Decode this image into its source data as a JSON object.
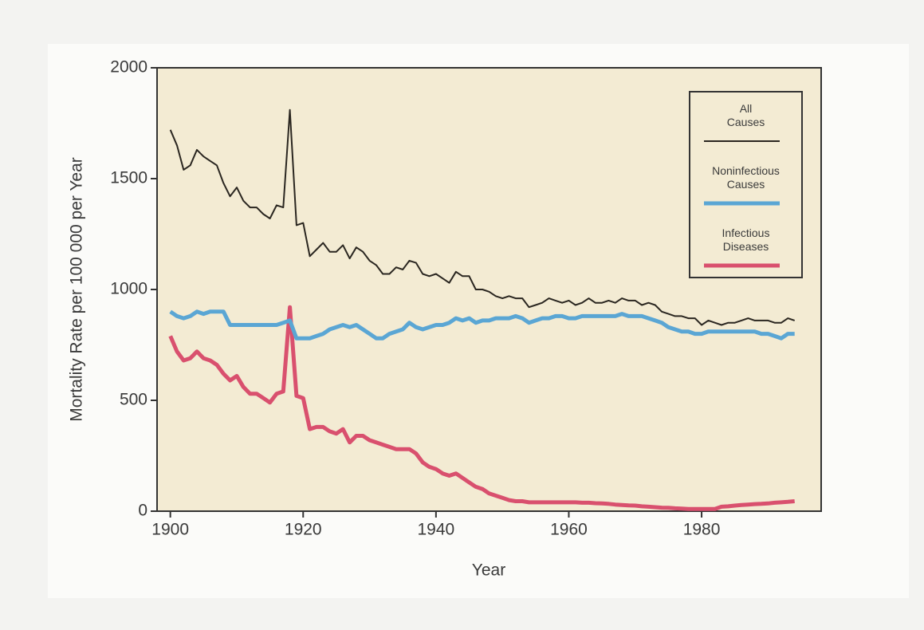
{
  "chart_data": {
    "type": "line",
    "xlabel": "Year",
    "ylabel": "Mortality Rate per 100 000 per Year",
    "x": [
      1900,
      1901,
      1902,
      1903,
      1904,
      1905,
      1906,
      1907,
      1908,
      1909,
      1910,
      1911,
      1912,
      1913,
      1914,
      1915,
      1916,
      1917,
      1918,
      1919,
      1920,
      1921,
      1922,
      1923,
      1924,
      1925,
      1926,
      1927,
      1928,
      1929,
      1930,
      1931,
      1932,
      1933,
      1934,
      1935,
      1936,
      1937,
      1938,
      1939,
      1940,
      1941,
      1942,
      1943,
      1944,
      1945,
      1946,
      1947,
      1948,
      1949,
      1950,
      1951,
      1952,
      1953,
      1954,
      1955,
      1956,
      1957,
      1958,
      1959,
      1960,
      1961,
      1962,
      1963,
      1964,
      1965,
      1966,
      1967,
      1968,
      1969,
      1970,
      1971,
      1972,
      1973,
      1974,
      1975,
      1976,
      1977,
      1978,
      1979,
      1980,
      1981,
      1982,
      1983,
      1984,
      1985,
      1986,
      1987,
      1988,
      1989,
      1990,
      1991,
      1992,
      1993,
      1994
    ],
    "series": [
      {
        "name": "All Causes",
        "color": "#2a2620",
        "values": [
          1720,
          1650,
          1540,
          1560,
          1630,
          1600,
          1580,
          1560,
          1480,
          1420,
          1460,
          1400,
          1370,
          1370,
          1340,
          1320,
          1380,
          1370,
          1810,
          1290,
          1300,
          1150,
          1180,
          1210,
          1170,
          1170,
          1200,
          1140,
          1190,
          1170,
          1130,
          1110,
          1070,
          1070,
          1100,
          1090,
          1130,
          1120,
          1070,
          1060,
          1070,
          1050,
          1030,
          1080,
          1060,
          1060,
          1000,
          1000,
          990,
          970,
          960,
          970,
          960,
          960,
          920,
          930,
          940,
          960,
          950,
          940,
          950,
          930,
          940,
          960,
          940,
          940,
          950,
          940,
          960,
          950,
          950,
          930,
          940,
          930,
          900,
          890,
          880,
          880,
          870,
          870,
          840,
          860,
          850,
          840,
          850,
          850,
          860,
          870,
          860,
          860,
          860,
          850,
          850,
          870,
          860
        ]
      },
      {
        "name": "Noninfectious Causes",
        "color": "#5aa6d4",
        "values": [
          900,
          880,
          870,
          880,
          900,
          890,
          900,
          900,
          900,
          840,
          840,
          840,
          840,
          840,
          840,
          840,
          840,
          850,
          860,
          780,
          780,
          780,
          790,
          800,
          820,
          830,
          840,
          830,
          840,
          820,
          800,
          780,
          780,
          800,
          810,
          820,
          850,
          830,
          820,
          830,
          840,
          840,
          850,
          870,
          860,
          870,
          850,
          860,
          860,
          870,
          870,
          870,
          880,
          870,
          850,
          860,
          870,
          870,
          880,
          880,
          870,
          870,
          880,
          880,
          880,
          880,
          880,
          880,
          890,
          880,
          880,
          880,
          870,
          860,
          850,
          830,
          820,
          810,
          810,
          800,
          800,
          810,
          810,
          810,
          810,
          810,
          810,
          810,
          810,
          800,
          800,
          790,
          780,
          800,
          800
        ]
      },
      {
        "name": "Infectious Diseases",
        "color": "#d9506e",
        "values": [
          790,
          720,
          680,
          690,
          720,
          690,
          680,
          660,
          620,
          590,
          610,
          560,
          530,
          530,
          510,
          490,
          530,
          540,
          920,
          520,
          510,
          370,
          380,
          380,
          360,
          350,
          370,
          310,
          340,
          340,
          320,
          310,
          300,
          290,
          280,
          280,
          280,
          260,
          220,
          200,
          190,
          170,
          160,
          170,
          150,
          130,
          110,
          100,
          80,
          70,
          60,
          50,
          45,
          45,
          40,
          40,
          40,
          40,
          40,
          40,
          40,
          40,
          38,
          38,
          36,
          35,
          33,
          30,
          28,
          26,
          25,
          22,
          20,
          18,
          16,
          15,
          13,
          12,
          10,
          10,
          10,
          10,
          10,
          20,
          22,
          25,
          28,
          30,
          32,
          33,
          35,
          38,
          40,
          42,
          45
        ]
      }
    ],
    "xlim": [
      1898,
      1998
    ],
    "xticks": [
      1900,
      1920,
      1940,
      1960,
      1980
    ],
    "ylim": [
      0,
      2000
    ],
    "yticks": [
      0,
      500,
      1000,
      1500,
      2000
    ],
    "grid": false,
    "legend": "upper right"
  }
}
